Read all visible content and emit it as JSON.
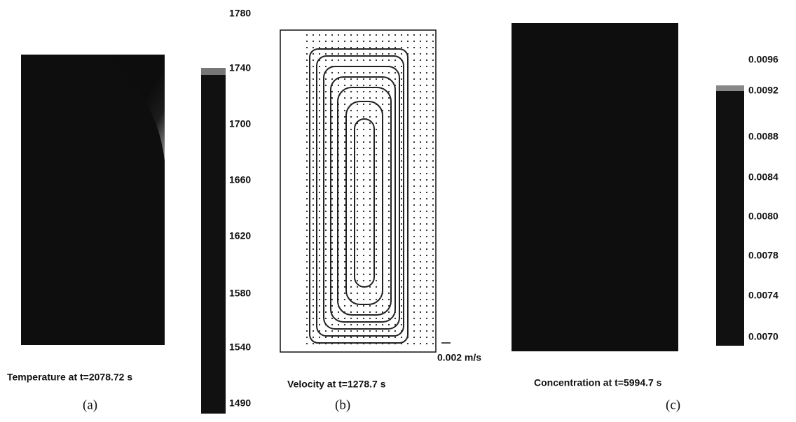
{
  "panels": [
    {
      "caption": "Temperature at t=2078.72 s",
      "label": "(a)",
      "colorbar_labels": [
        "1780",
        "1740",
        "1700",
        "1660",
        "1620",
        "1580",
        "1540",
        "1490"
      ]
    },
    {
      "caption": "Velocity at t=1278.7 s",
      "label": "(b)",
      "scale_label": "0.002 m/s"
    },
    {
      "caption": "Concentration at t=5994.7 s",
      "label": "(c)",
      "colorbar_labels": [
        "0.0096",
        "0.0092",
        "0.0088",
        "0.0084",
        "0.0080",
        "0.0078",
        "0.0074",
        "0.0070"
      ]
    }
  ]
}
